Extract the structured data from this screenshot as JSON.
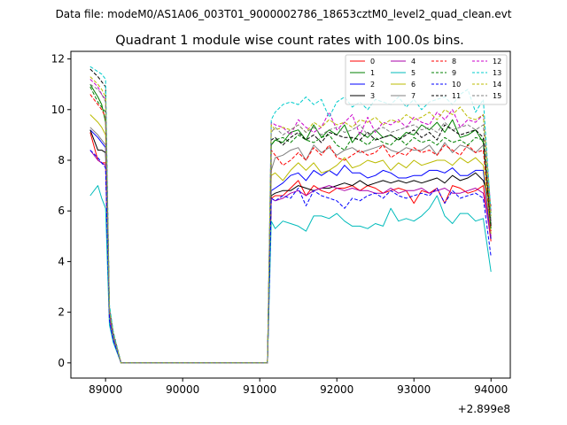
{
  "chart_data": {
    "type": "line",
    "suptitle": "Data file: modeM0/AS1A06_003T01_9000002786_18653cztM0_level2_quad_clean.evt",
    "title": "Quadrant 1 module wise count rates with 100.0s bins.",
    "xlabel": "",
    "ylabel": "",
    "x_offset_label": "+2.899e8",
    "xlim": [
      88550,
      94250
    ],
    "ylim": [
      -0.6,
      12.3
    ],
    "x_ticks": [
      {
        "value": 89000,
        "label": "89000"
      },
      {
        "value": 90000,
        "label": "90000"
      },
      {
        "value": 91000,
        "label": "91000"
      },
      {
        "value": 92000,
        "label": "92000"
      },
      {
        "value": 93000,
        "label": "93000"
      },
      {
        "value": 94000,
        "label": "94000"
      }
    ],
    "y_ticks": [
      {
        "value": 0,
        "label": "0"
      },
      {
        "value": 2,
        "label": "2"
      },
      {
        "value": 4,
        "label": "4"
      },
      {
        "value": 6,
        "label": "6"
      },
      {
        "value": 8,
        "label": "8"
      },
      {
        "value": 10,
        "label": "10"
      },
      {
        "value": 12,
        "label": "12"
      }
    ],
    "grid": false,
    "legend_position": "top-right",
    "x": [
      88800,
      88900,
      88950,
      89000,
      89050,
      89100,
      89200,
      91050,
      91100,
      91150,
      91200,
      91300,
      91400,
      91500,
      91600,
      91700,
      91800,
      91900,
      92000,
      92100,
      92200,
      92300,
      92400,
      92500,
      92600,
      92700,
      92800,
      92900,
      93000,
      93100,
      93200,
      93300,
      93400,
      93500,
      93600,
      93700,
      93800,
      93900,
      94000
    ],
    "series": [
      {
        "name": "0",
        "color": "#ff0000",
        "dash": "solid",
        "values": [
          9.1,
          8.0,
          7.9,
          7.9,
          1.8,
          0.9,
          0,
          0,
          0,
          6.5,
          6.6,
          6.6,
          6.9,
          7.2,
          6.6,
          7.0,
          6.8,
          6.7,
          6.9,
          6.9,
          7.0,
          6.8,
          7.0,
          6.9,
          6.7,
          6.8,
          6.9,
          6.8,
          6.3,
          6.8,
          6.7,
          6.9,
          6.3,
          7.0,
          6.9,
          6.7,
          6.8,
          7.0,
          4.8
        ]
      },
      {
        "name": "1",
        "color": "#008000",
        "dash": "solid",
        "values": [
          11.0,
          10.5,
          10.2,
          9.5,
          2.1,
          1.1,
          0,
          0,
          0,
          8.6,
          8.8,
          8.7,
          9.1,
          9.2,
          8.8,
          9.4,
          8.9,
          9.2,
          9.0,
          9.4,
          8.7,
          9.1,
          8.9,
          9.2,
          8.9,
          9.0,
          8.8,
          9.1,
          9.0,
          9.4,
          9.2,
          9.5,
          9.1,
          9.6,
          8.9,
          9.0,
          9.2,
          8.7,
          5.6
        ]
      },
      {
        "name": "2",
        "color": "#0000ff",
        "dash": "solid",
        "values": [
          9.2,
          8.9,
          8.7,
          8.5,
          1.9,
          1.0,
          0,
          0,
          0,
          6.8,
          6.9,
          7.1,
          7.4,
          7.5,
          7.2,
          7.6,
          7.4,
          7.6,
          7.4,
          7.8,
          7.5,
          7.5,
          7.3,
          7.4,
          7.6,
          7.5,
          7.3,
          7.3,
          7.4,
          7.4,
          7.6,
          7.6,
          7.5,
          7.7,
          7.4,
          7.4,
          7.6,
          7.6,
          4.9
        ]
      },
      {
        "name": "3",
        "color": "#000000",
        "dash": "solid",
        "values": [
          9.2,
          8.4,
          8.4,
          8.3,
          2.0,
          1.1,
          0,
          0,
          0,
          6.6,
          6.7,
          6.8,
          6.8,
          7.0,
          6.9,
          6.8,
          6.9,
          6.9,
          7.0,
          7.1,
          7.0,
          7.2,
          7.0,
          7.1,
          7.2,
          7.1,
          7.2,
          7.1,
          7.2,
          7.1,
          7.2,
          7.3,
          7.1,
          7.4,
          7.2,
          7.3,
          7.5,
          7.2,
          6.2
        ]
      },
      {
        "name": "4",
        "color": "#aa00aa",
        "dash": "solid",
        "values": [
          8.4,
          8.0,
          7.9,
          7.8,
          1.7,
          0.9,
          0,
          0,
          0,
          6.5,
          6.4,
          6.5,
          6.7,
          6.8,
          6.6,
          6.8,
          6.9,
          7.0,
          6.9,
          6.8,
          6.9,
          6.8,
          6.8,
          6.7,
          6.7,
          6.9,
          6.7,
          6.8,
          6.8,
          6.9,
          6.7,
          6.8,
          6.9,
          6.7,
          6.7,
          6.8,
          6.9,
          6.7,
          5.0
        ]
      },
      {
        "name": "5",
        "color": "#00bbbb",
        "dash": "solid",
        "values": [
          6.6,
          7.0,
          6.5,
          6.1,
          1.5,
          0.8,
          0,
          0,
          0,
          5.6,
          5.3,
          5.6,
          5.5,
          5.4,
          5.2,
          5.8,
          5.8,
          5.7,
          5.9,
          5.6,
          5.4,
          5.4,
          5.3,
          5.5,
          5.4,
          6.1,
          5.6,
          5.7,
          5.6,
          5.8,
          6.1,
          6.6,
          5.8,
          5.5,
          5.9,
          5.9,
          5.6,
          5.7,
          3.6
        ]
      },
      {
        "name": "6",
        "color": "#bbbb00",
        "dash": "solid",
        "values": [
          9.8,
          9.5,
          9.3,
          9.0,
          2.0,
          1.1,
          0,
          0,
          0,
          7.4,
          7.5,
          7.2,
          7.6,
          7.9,
          7.6,
          7.9,
          7.5,
          7.6,
          7.8,
          8.1,
          7.7,
          7.8,
          8.0,
          7.9,
          8.0,
          7.6,
          7.9,
          7.7,
          8.0,
          7.8,
          7.9,
          8.0,
          8.0,
          7.8,
          8.1,
          7.9,
          8.1,
          7.8,
          5.1
        ]
      },
      {
        "name": "7",
        "color": "#808080",
        "dash": "solid",
        "values": [
          9.3,
          9.0,
          8.8,
          8.6,
          1.9,
          1.0,
          0,
          0,
          0,
          7.6,
          8.1,
          8.2,
          8.4,
          8.5,
          8.0,
          8.6,
          8.3,
          8.5,
          8.2,
          8.4,
          8.5,
          8.3,
          8.4,
          8.5,
          8.6,
          8.4,
          8.3,
          8.5,
          8.4,
          8.4,
          8.6,
          8.2,
          8.7,
          8.3,
          8.6,
          8.5,
          8.3,
          8.6,
          5.5
        ]
      },
      {
        "name": "8",
        "color": "#ff0000",
        "dash": "dashed",
        "values": [
          10.6,
          10.2,
          10.0,
          9.7,
          2.0,
          1.1,
          0,
          0,
          0,
          8.4,
          8.2,
          7.8,
          8.0,
          8.3,
          8.0,
          8.5,
          8.2,
          8.6,
          8.1,
          8.0,
          8.2,
          8.4,
          8.2,
          8.3,
          8.6,
          8.1,
          8.3,
          8.2,
          8.5,
          8.3,
          8.4,
          8.2,
          8.6,
          8.4,
          8.2,
          8.6,
          8.3,
          8.4,
          5.2
        ]
      },
      {
        "name": "9",
        "color": "#008000",
        "dash": "dashed",
        "values": [
          10.9,
          10.3,
          10.1,
          9.9,
          2.1,
          1.1,
          0,
          0,
          0,
          8.6,
          8.8,
          8.9,
          8.7,
          9.0,
          8.8,
          8.7,
          8.9,
          9.0,
          8.6,
          8.4,
          8.9,
          8.8,
          8.6,
          8.9,
          8.7,
          8.6,
          8.9,
          8.6,
          8.9,
          8.7,
          8.8,
          8.6,
          8.9,
          8.7,
          8.8,
          8.6,
          8.9,
          8.8,
          5.3
        ]
      },
      {
        "name": "10",
        "color": "#0000ff",
        "dash": "dashed",
        "values": [
          8.4,
          8.1,
          7.9,
          7.7,
          1.7,
          0.9,
          0,
          0,
          0,
          6.5,
          6.4,
          6.6,
          6.5,
          6.9,
          6.2,
          6.8,
          6.6,
          6.5,
          6.4,
          6.1,
          6.5,
          6.4,
          6.6,
          6.7,
          6.5,
          6.8,
          6.6,
          6.5,
          6.6,
          6.7,
          6.6,
          6.9,
          6.3,
          6.8,
          6.5,
          6.6,
          6.7,
          6.5,
          4.2
        ]
      },
      {
        "name": "11",
        "color": "#000000",
        "dash": "dashed",
        "values": [
          11.6,
          11.3,
          11.1,
          10.9,
          2.2,
          1.2,
          0,
          0,
          0,
          8.8,
          8.9,
          8.6,
          8.9,
          9.1,
          8.8,
          9.0,
          8.7,
          9.1,
          9.0,
          8.9,
          8.9,
          8.8,
          9.1,
          8.8,
          8.9,
          9.0,
          8.8,
          9.0,
          9.2,
          8.9,
          9.1,
          8.8,
          9.4,
          9.2,
          9.0,
          9.1,
          9.2,
          8.9,
          5.4
        ]
      },
      {
        "name": "12",
        "color": "#cc00cc",
        "dash": "dashed",
        "values": [
          11.2,
          10.9,
          10.6,
          10.4,
          2.1,
          1.1,
          0,
          0,
          0,
          9.5,
          9.4,
          9.3,
          9.0,
          9.6,
          9.3,
          9.1,
          9.3,
          9.9,
          9.2,
          9.5,
          9.8,
          9.0,
          9.7,
          9.1,
          9.5,
          9.4,
          9.6,
          9.3,
          9.7,
          9.5,
          9.4,
          9.9,
          9.6,
          10.0,
          9.3,
          9.6,
          9.5,
          9.8,
          6.0
        ]
      },
      {
        "name": "13",
        "color": "#00cccc",
        "dash": "dashed",
        "values": [
          11.7,
          11.5,
          11.4,
          11.2,
          2.3,
          1.2,
          0,
          0,
          0,
          9.6,
          9.9,
          10.2,
          10.3,
          10.2,
          10.5,
          10.2,
          10.4,
          9.7,
          10.3,
          10.5,
          10.1,
          10.3,
          10.0,
          10.4,
          10.3,
          10.2,
          10.5,
          10.1,
          10.4,
          10.0,
          10.3,
          10.4,
          10.5,
          10.2,
          10.6,
          10.8,
          9.9,
          10.4,
          5.9
        ]
      },
      {
        "name": "14",
        "color": "#bbbb00",
        "dash": "dashed",
        "values": [
          11.3,
          11.0,
          10.8,
          10.5,
          2.1,
          1.1,
          0,
          0,
          0,
          9.4,
          9.2,
          9.3,
          9.2,
          9.4,
          9.1,
          9.5,
          9.3,
          9.6,
          9.4,
          9.5,
          9.3,
          9.6,
          9.5,
          9.7,
          9.4,
          9.6,
          9.5,
          9.8,
          9.6,
          9.7,
          9.9,
          9.6,
          10.0,
          9.8,
          10.1,
          9.7,
          9.6,
          9.8,
          5.8
        ]
      },
      {
        "name": "15",
        "color": "#808080",
        "dash": "dashed",
        "values": [
          11.0,
          10.8,
          10.6,
          10.3,
          2.1,
          1.1,
          0,
          0,
          0,
          9.1,
          9.3,
          9.0,
          9.2,
          9.4,
          9.1,
          9.3,
          9.0,
          9.2,
          9.3,
          9.1,
          9.2,
          9.4,
          9.0,
          9.2,
          9.3,
          9.1,
          9.2,
          9.3,
          9.4,
          9.2,
          9.3,
          9.1,
          9.5,
          9.2,
          9.3,
          9.4,
          9.2,
          9.4,
          5.6
        ]
      }
    ]
  }
}
